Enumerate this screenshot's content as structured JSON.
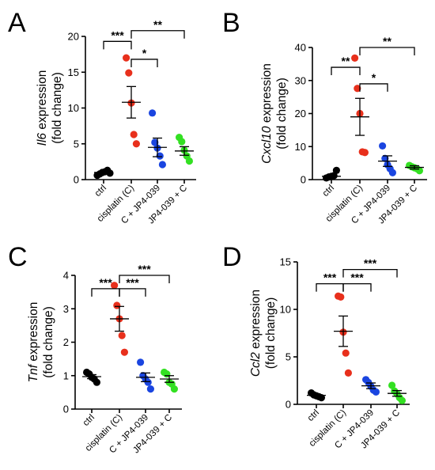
{
  "chart_data": [
    {
      "panel": "A",
      "type": "scatter",
      "gene": "Il6",
      "ylabel_suffix": " expression",
      "ylabel_line2": "(fold change)",
      "ylim": [
        0,
        20
      ],
      "yticks": [
        "0",
        "5",
        "10",
        "15",
        "20"
      ],
      "categories": [
        "ctrl",
        "cisplatin (C)",
        "C + JP4-039",
        "JP4-039 + C"
      ],
      "colors": [
        "#000000",
        "#e8301c",
        "#1a45e0",
        "#33e022"
      ],
      "points": [
        [
          0.6,
          0.8,
          1.0,
          1.1,
          1.3,
          0.9
        ],
        [
          17.0,
          14.9,
          10.7,
          6.3,
          5.0
        ],
        [
          9.3,
          5.2,
          4.4,
          3.3,
          2.1
        ],
        [
          5.9,
          5.3,
          4.1,
          3.3,
          2.6
        ]
      ],
      "mean": [
        1.0,
        10.8,
        4.5,
        4.0
      ],
      "sem": [
        0.2,
        2.2,
        1.3,
        0.6
      ],
      "significance": [
        {
          "from": 0,
          "to": 1,
          "label": "***",
          "y": 19.3
        },
        {
          "from": 1,
          "to": 2,
          "label": "*",
          "y": 16.8
        },
        {
          "from": 1,
          "to": 3,
          "label": "**",
          "y": 20.8
        }
      ]
    },
    {
      "panel": "B",
      "type": "scatter",
      "gene": "Cxcl10",
      "ylabel_suffix": " expression",
      "ylabel_line2": "(fold change)",
      "ylim": [
        0,
        40
      ],
      "yticks": [
        "0",
        "10",
        "20",
        "30",
        "40"
      ],
      "categories": [
        "ctrl",
        "cisplatin (C)",
        "C + JP4-039",
        "JP4-039 + C"
      ],
      "colors": [
        "#000000",
        "#e8301c",
        "#1a45e0",
        "#33e022"
      ],
      "points": [
        [
          0.5,
          0.8,
          1.0,
          1.2,
          2.8
        ],
        [
          36.8,
          27.6,
          20.0,
          8.4,
          8.2
        ],
        [
          10.2,
          6.4,
          4.5,
          3.3,
          2.1
        ],
        [
          4.3,
          3.9,
          3.6,
          3.3,
          2.7
        ]
      ],
      "mean": [
        1.0,
        19.0,
        5.6,
        3.7
      ],
      "sem": [
        0.4,
        5.6,
        1.6,
        0.5
      ],
      "significance": [
        {
          "from": 0,
          "to": 1,
          "label": "**",
          "y": 34.0
        },
        {
          "from": 1,
          "to": 2,
          "label": "*",
          "y": 29.0
        },
        {
          "from": 1,
          "to": 3,
          "label": "**",
          "y": 40.0
        }
      ]
    },
    {
      "panel": "C",
      "type": "scatter",
      "gene": "Tnf",
      "ylabel_suffix": " expression",
      "ylabel_line2": "(fold change)",
      "ylim": [
        0,
        4
      ],
      "yticks": [
        "0",
        "1",
        "2",
        "3",
        "4"
      ],
      "categories": [
        "ctrl",
        "cisplatin (C)",
        "C + JP4-039",
        "JP4-039 + C"
      ],
      "colors": [
        "#000000",
        "#e8301c",
        "#1a45e0",
        "#33e022"
      ],
      "points": [
        [
          1.1,
          1.05,
          0.95,
          0.9,
          0.8
        ],
        [
          3.7,
          3.1,
          2.7,
          2.2,
          1.7
        ],
        [
          1.4,
          1.0,
          0.9,
          0.8,
          0.6
        ],
        [
          1.1,
          1.05,
          0.8,
          0.75,
          0.6
        ]
      ],
      "mean": [
        0.97,
        2.7,
        0.95,
        0.9
      ],
      "sem": [
        0.06,
        0.37,
        0.13,
        0.1
      ],
      "significance": [
        {
          "from": 0,
          "to": 1,
          "label": "***",
          "y": 3.6
        },
        {
          "from": 1,
          "to": 2,
          "label": "***",
          "y": 3.6
        },
        {
          "from": 1,
          "to": 3,
          "label": "***",
          "y": 4.0
        }
      ]
    },
    {
      "panel": "D",
      "type": "scatter",
      "gene": "Ccl2",
      "ylabel_suffix": " expression",
      "ylabel_line2": "(fold change)",
      "ylim": [
        0,
        15
      ],
      "yticks": [
        "0",
        "5",
        "10",
        "15"
      ],
      "categories": [
        "ctrl",
        "cisplatin (C)",
        "C + JP4-039",
        "JP4-039 + C"
      ],
      "colors": [
        "#000000",
        "#e8301c",
        "#1a45e0",
        "#33e022"
      ],
      "points": [
        [
          1.2,
          1.0,
          0.9,
          0.8,
          0.7
        ],
        [
          11.4,
          11.3,
          7.6,
          5.4,
          3.3
        ],
        [
          2.6,
          2.3,
          1.9,
          1.5,
          1.3
        ],
        [
          2.0,
          1.4,
          1.1,
          0.7,
          0.4
        ]
      ],
      "mean": [
        0.95,
        7.7,
        1.95,
        1.15
      ],
      "sem": [
        0.1,
        1.6,
        0.3,
        0.3
      ],
      "significance": [
        {
          "from": 0,
          "to": 1,
          "label": "***",
          "y": 12.7
        },
        {
          "from": 1,
          "to": 2,
          "label": "***",
          "y": 12.7
        },
        {
          "from": 1,
          "to": 3,
          "label": "***",
          "y": 14.2
        }
      ]
    }
  ]
}
